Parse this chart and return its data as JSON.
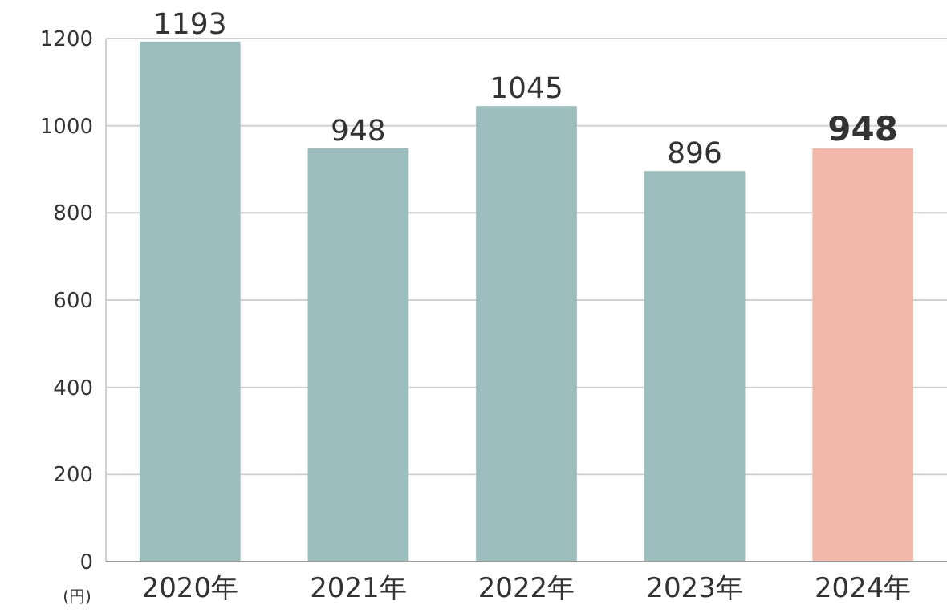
{
  "chart_data": {
    "type": "bar",
    "ylabel": "(円)",
    "categories": [
      "2020年",
      "2021年",
      "2022年",
      "2023年",
      "2024年"
    ],
    "values": [
      1193,
      948,
      1045,
      896,
      948
    ],
    "colors": [
      "#9cbebe",
      "#9cbebe",
      "#9cbebe",
      "#9cbebe",
      "#f2b8aa"
    ],
    "ylim": [
      0,
      1200
    ],
    "yticks": [
      0,
      200,
      400,
      600,
      800,
      1000,
      1200
    ],
    "grid": "y",
    "data_labels": true
  }
}
